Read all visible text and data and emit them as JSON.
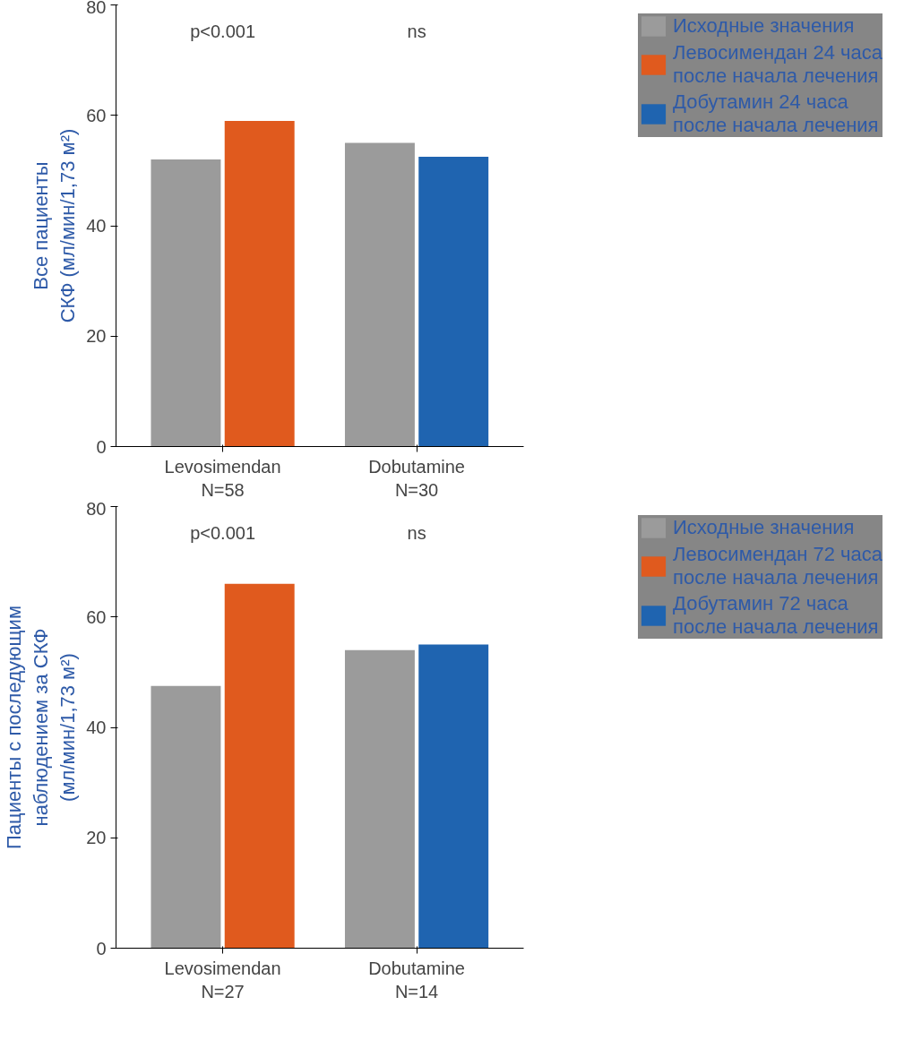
{
  "chart_data": [
    {
      "type": "bar",
      "ylabel": "Все пациенты\nСКФ (мл/мин/1,73 м²)",
      "categories": [
        "Levosimendan\nN=58",
        "Dobutamine\nN=30"
      ],
      "series": [
        {
          "name": "Исходные значения",
          "color": "#9b9b9b",
          "values": [
            52,
            55
          ]
        },
        {
          "name": "Левосимендан 24 часа после начала лечения",
          "color": "#e05a1e",
          "values": [
            59,
            null
          ]
        },
        {
          "name": "Добутамин 24 часа после начала лечения",
          "color": "#1f64b0",
          "values": [
            null,
            52.5
          ]
        }
      ],
      "ylim": [
        0,
        80
      ],
      "yticks": [
        0,
        20,
        40,
        60,
        80
      ],
      "grid": false,
      "legend": "right",
      "annotations": [
        "p<0.001",
        "ns"
      ]
    },
    {
      "type": "bar",
      "ylabel": "Пациенты с последующим наблюдением за СКФ (мл/мин/1,73 м²)",
      "categories": [
        "Levosimendan\nN=27",
        "Dobutamine\nN=14"
      ],
      "series": [
        {
          "name": "Исходные значения",
          "color": "#9b9b9b",
          "values": [
            47.5,
            54
          ]
        },
        {
          "name": "Левосимендан 72 часа после начала лечения",
          "color": "#e05a1e",
          "values": [
            66,
            null
          ]
        },
        {
          "name": "Добутамин 72 часа после начала лечения",
          "color": "#1f64b0",
          "values": [
            null,
            55
          ]
        }
      ],
      "ylim": [
        0,
        80
      ],
      "yticks": [
        0,
        20,
        40,
        60,
        80
      ],
      "grid": false,
      "legend": "right",
      "annotations": [
        "p<0.001",
        "ns"
      ]
    }
  ]
}
